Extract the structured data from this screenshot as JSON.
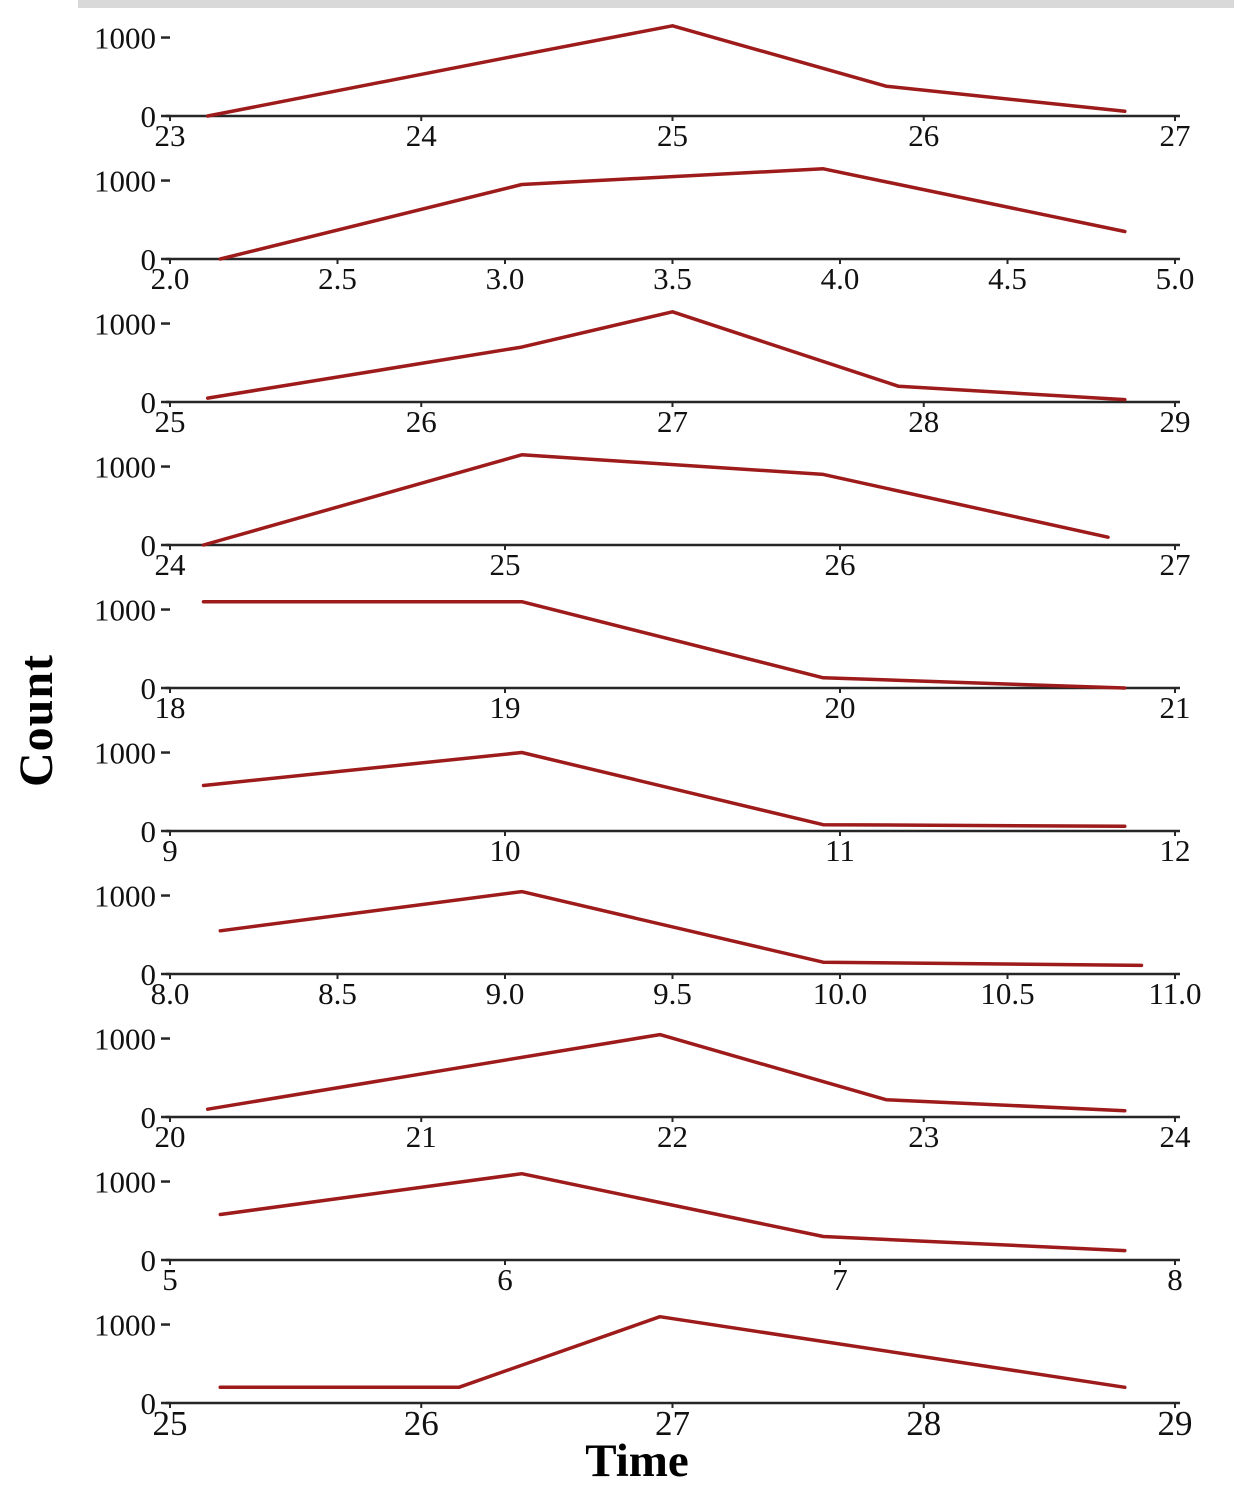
{
  "chart_data": {
    "type": "line",
    "title": "",
    "xlabel": "Time",
    "ylabel": "Count",
    "legend": "none",
    "grid": false,
    "line_color": "#9e1b1b",
    "axis_color": "#262626",
    "ylim": [
      0,
      1300
    ],
    "yticks": [
      0,
      1000
    ],
    "ytick_labels": [
      "0",
      "1000"
    ],
    "subplots": [
      {
        "xlim": [
          23,
          27
        ],
        "xticks": [
          23,
          24,
          25,
          26,
          27
        ],
        "xtick_labels": [
          "23",
          "24",
          "25",
          "26",
          "27"
        ],
        "points": [
          [
            23.15,
            0
          ],
          [
            24.4,
            780
          ],
          [
            25.0,
            1150
          ],
          [
            25.85,
            380
          ],
          [
            26.8,
            60
          ]
        ]
      },
      {
        "xlim": [
          2.0,
          5.0
        ],
        "xticks": [
          2.0,
          2.5,
          3.0,
          3.5,
          4.0,
          4.5,
          5.0
        ],
        "xtick_labels": [
          "2.0",
          "2.5",
          "3.0",
          "3.5",
          "4.0",
          "4.5",
          "5.0"
        ],
        "points": [
          [
            2.15,
            0
          ],
          [
            3.05,
            950
          ],
          [
            3.5,
            1050
          ],
          [
            3.95,
            1150
          ],
          [
            4.85,
            350
          ]
        ]
      },
      {
        "xlim": [
          25,
          29
        ],
        "xticks": [
          25,
          26,
          27,
          28,
          29
        ],
        "xtick_labels": [
          "25",
          "26",
          "27",
          "28",
          "29"
        ],
        "points": [
          [
            25.15,
            50
          ],
          [
            26.4,
            700
          ],
          [
            27.0,
            1150
          ],
          [
            27.9,
            200
          ],
          [
            28.8,
            30
          ]
        ]
      },
      {
        "xlim": [
          24,
          27
        ],
        "xticks": [
          24,
          25,
          26,
          27
        ],
        "xtick_labels": [
          "24",
          "25",
          "26",
          "27"
        ],
        "points": [
          [
            24.1,
            0
          ],
          [
            25.05,
            1150
          ],
          [
            25.95,
            900
          ],
          [
            26.8,
            100
          ]
        ]
      },
      {
        "xlim": [
          18,
          21
        ],
        "xticks": [
          18,
          19,
          20,
          21
        ],
        "xtick_labels": [
          "18",
          "19",
          "20",
          "21"
        ],
        "points": [
          [
            18.1,
            1100
          ],
          [
            19.05,
            1100
          ],
          [
            19.95,
            130
          ],
          [
            20.85,
            0
          ]
        ]
      },
      {
        "xlim": [
          9,
          12
        ],
        "xticks": [
          9,
          10,
          11,
          12
        ],
        "xtick_labels": [
          "9",
          "10",
          "11",
          "12"
        ],
        "points": [
          [
            9.1,
            580
          ],
          [
            10.05,
            1000
          ],
          [
            10.95,
            80
          ],
          [
            11.85,
            60
          ]
        ]
      },
      {
        "xlim": [
          8.0,
          11.0
        ],
        "xticks": [
          8.0,
          8.5,
          9.0,
          9.5,
          10.0,
          10.5,
          11.0
        ],
        "xtick_labels": [
          "8.0",
          "8.5",
          "9.0",
          "9.5",
          "10.0",
          "10.5",
          "11.0"
        ],
        "points": [
          [
            8.15,
            550
          ],
          [
            9.05,
            1050
          ],
          [
            9.95,
            150
          ],
          [
            10.9,
            110
          ]
        ]
      },
      {
        "xlim": [
          20,
          24
        ],
        "xticks": [
          20,
          21,
          22,
          23,
          24
        ],
        "xtick_labels": [
          "20",
          "21",
          "22",
          "23",
          "24"
        ],
        "points": [
          [
            20.15,
            100
          ],
          [
            21.95,
            1050
          ],
          [
            22.85,
            220
          ],
          [
            23.8,
            80
          ]
        ]
      },
      {
        "xlim": [
          5,
          8
        ],
        "xticks": [
          5,
          6,
          7,
          8
        ],
        "xtick_labels": [
          "5",
          "6",
          "7",
          "8"
        ],
        "points": [
          [
            5.15,
            580
          ],
          [
            6.05,
            1100
          ],
          [
            6.95,
            300
          ],
          [
            7.85,
            120
          ]
        ]
      },
      {
        "xlim": [
          25,
          29
        ],
        "xticks": [
          25,
          26,
          27,
          28,
          29
        ],
        "xtick_labels": [
          "25",
          "26",
          "27",
          "28",
          "29"
        ],
        "points": [
          [
            25.2,
            200
          ],
          [
            26.15,
            200
          ],
          [
            26.95,
            1100
          ],
          [
            28.8,
            200
          ]
        ]
      }
    ]
  }
}
